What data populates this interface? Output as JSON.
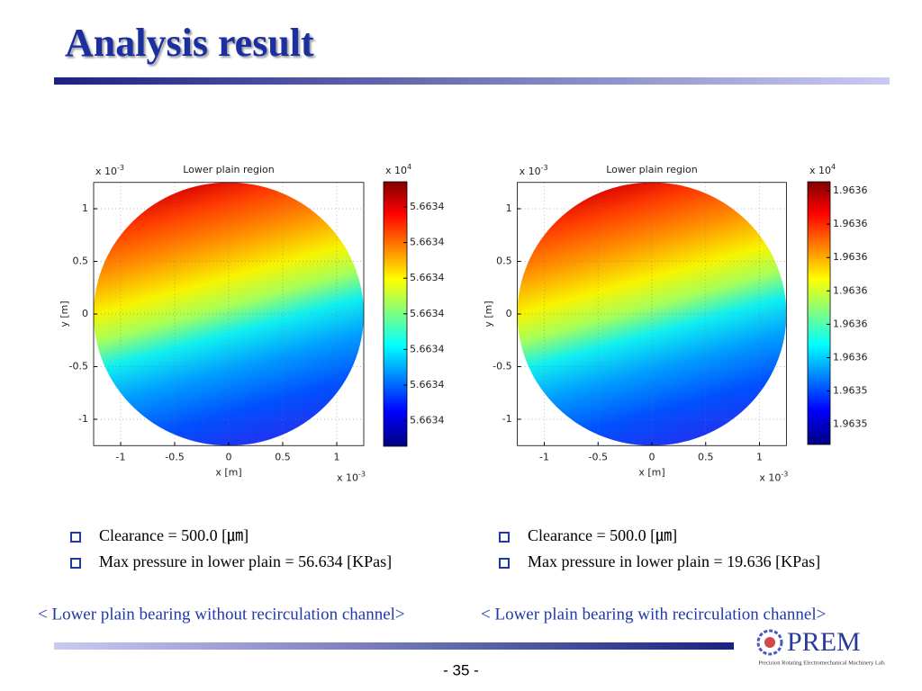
{
  "title": "Analysis result",
  "figures": [
    {
      "title": "Lower plain region",
      "xlabel": "x [m]",
      "ylabel": "y [m]",
      "xlim": [
        -1.25,
        1.25
      ],
      "ylim": [
        -1.25,
        1.25
      ],
      "xticks": [
        -1,
        -0.5,
        0,
        0.5,
        1
      ],
      "yticks": [
        -1,
        -0.5,
        0,
        0.5,
        1
      ],
      "grid": true,
      "x_multiplier": {
        "base": "x 10",
        "exponent": "-3"
      },
      "y_multiplier": {
        "base": "x 10",
        "exponent": "-3"
      },
      "colorbar_multiplier": {
        "base": "x 10",
        "exponent": "4"
      },
      "colorbar_ticks": [
        "5.6634",
        "5.6634",
        "5.6634",
        "5.6634",
        "5.6634",
        "5.6634",
        "5.6634"
      ]
    },
    {
      "title": "Lower plain region",
      "xlabel": "x [m]",
      "ylabel": "y [m]",
      "xlim": [
        -1.25,
        1.25
      ],
      "ylim": [
        -1.25,
        1.25
      ],
      "xticks": [
        -1,
        -0.5,
        0,
        0.5,
        1
      ],
      "yticks": [
        -1,
        -0.5,
        0,
        0.5,
        1
      ],
      "grid": true,
      "x_multiplier": {
        "base": "x 10",
        "exponent": "-3"
      },
      "y_multiplier": {
        "base": "x 10",
        "exponent": "-3"
      },
      "colorbar_multiplier": {
        "base": "x 10",
        "exponent": "4"
      },
      "colorbar_ticks": [
        "1.9636",
        "1.9636",
        "1.9636",
        "1.9636",
        "1.9636",
        "1.9636",
        "1.9635",
        "1.9635"
      ]
    }
  ],
  "notes": [
    [
      "Clearance = 500.0 [㎛]",
      "Max pressure in lower plain = 56.634 [KPas]"
    ],
    [
      "Clearance = 500.0 [㎛]",
      "Max pressure in lower plain =  19.636 [KPas]"
    ]
  ],
  "captions": [
    "< Lower plain bearing without recirculation channel>",
    "< Lower plain bearing with recirculation channel>"
  ],
  "page_number": "- 35 -",
  "logo": {
    "name": "PREM",
    "subtitle": "Precision Rotating Electromechanical Machinery Lab."
  }
}
